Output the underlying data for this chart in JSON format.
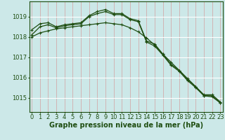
{
  "hours": [
    0,
    1,
    2,
    3,
    4,
    5,
    6,
    7,
    8,
    9,
    10,
    11,
    12,
    13,
    14,
    15,
    16,
    17,
    18,
    19,
    20,
    21,
    22,
    23
  ],
  "line_upper": [
    1018.35,
    1018.65,
    1018.7,
    1018.5,
    1018.6,
    1018.65,
    1018.7,
    1019.05,
    1019.25,
    1019.35,
    1019.15,
    1019.15,
    1018.9,
    1018.8,
    1017.8,
    1017.65,
    1017.15,
    1016.65,
    1016.35,
    1015.9,
    1015.55,
    1015.15,
    1015.15,
    1014.8
  ],
  "line_mid": [
    1018.1,
    1018.5,
    1018.6,
    1018.45,
    1018.55,
    1018.6,
    1018.65,
    1019.0,
    1019.15,
    1019.25,
    1019.1,
    1019.1,
    1018.85,
    1018.75,
    1017.75,
    1017.55,
    1017.1,
    1016.6,
    1016.3,
    1015.85,
    1015.5,
    1015.1,
    1015.1,
    1014.75
  ],
  "line_lower": [
    1018.0,
    1018.2,
    1018.3,
    1018.4,
    1018.45,
    1018.5,
    1018.55,
    1018.6,
    1018.65,
    1018.7,
    1018.65,
    1018.6,
    1018.45,
    1018.25,
    1017.95,
    1017.6,
    1017.15,
    1016.75,
    1016.35,
    1015.95,
    1015.55,
    1015.1,
    1015.05,
    1014.75
  ],
  "bg_color": "#cce8e8",
  "line_color": "#1e4d10",
  "grid_color_v": "#d4a0a0",
  "grid_color_h": "#ffffff",
  "ylabel_values": [
    1015,
    1016,
    1017,
    1018,
    1019
  ],
  "xlabel": "Graphe pression niveau de la mer (hPa)",
  "ylim_min": 1014.3,
  "ylim_max": 1019.75,
  "xlabel_fontsize": 7,
  "tick_fontsize": 6
}
